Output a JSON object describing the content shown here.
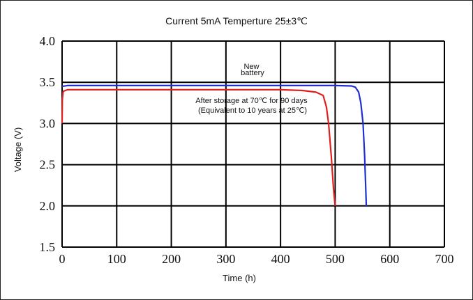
{
  "chart_data": {
    "type": "line",
    "title": "Current 5mA  Temperture 25±3℃",
    "xlabel": "Time (h)",
    "ylabel": "Voltage (V)",
    "xlim": [
      0,
      700
    ],
    "ylim": [
      1.5,
      4.0
    ],
    "x_ticks": [
      0,
      100,
      200,
      300,
      400,
      500,
      600,
      700
    ],
    "y_ticks": [
      "4.0",
      "3.5",
      "3.0",
      "2.5",
      "2.0",
      "1.5"
    ],
    "y_tick_values": [
      4.0,
      3.5,
      3.0,
      2.5,
      2.0,
      1.5
    ],
    "grid": true,
    "series": [
      {
        "color": "#1f2fd0",
        "points": [
          [
            0,
            3.45
          ],
          [
            10,
            3.46
          ],
          [
            100,
            3.46
          ],
          [
            200,
            3.46
          ],
          [
            300,
            3.46
          ],
          [
            400,
            3.46
          ],
          [
            500,
            3.46
          ],
          [
            530,
            3.455
          ],
          [
            537,
            3.44
          ],
          [
            543,
            3.38
          ],
          [
            547,
            3.25
          ],
          [
            551,
            3.0
          ],
          [
            554,
            2.6
          ],
          [
            556,
            2.2
          ],
          [
            557,
            1.99
          ]
        ]
      },
      {
        "color": "#e02020",
        "points": [
          [
            0,
            3.0
          ],
          [
            0.5,
            3.3
          ],
          [
            2,
            3.39
          ],
          [
            10,
            3.41
          ],
          [
            100,
            3.41
          ],
          [
            200,
            3.41
          ],
          [
            300,
            3.41
          ],
          [
            400,
            3.41
          ],
          [
            440,
            3.4
          ],
          [
            465,
            3.38
          ],
          [
            478,
            3.34
          ],
          [
            484,
            3.2
          ],
          [
            488,
            3.0
          ],
          [
            493,
            2.6
          ],
          [
            497,
            2.2
          ],
          [
            500,
            2.0
          ]
        ]
      }
    ],
    "annotations": [
      {
        "lines": [
          "New",
          "battery"
        ]
      },
      {
        "lines": [
          "After storage at 70℃ for 90 days",
          "(Equivalent to 10 years at 25℃)"
        ]
      }
    ]
  }
}
